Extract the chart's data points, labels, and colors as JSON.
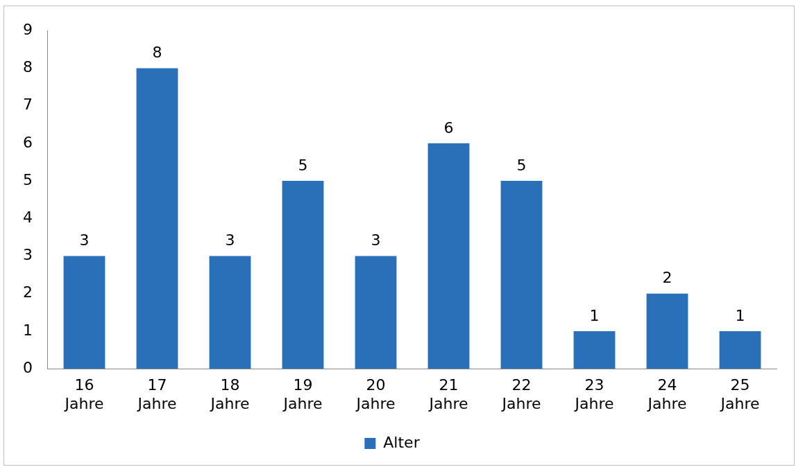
{
  "chart_data": {
    "type": "bar",
    "categories": [
      "16 Jahre",
      "17 Jahre",
      "18 Jahre",
      "19 Jahre",
      "20 Jahre",
      "21 Jahre",
      "22 Jahre",
      "23 Jahre",
      "24 Jahre",
      "25 Jahre"
    ],
    "series": [
      {
        "name": "Alter",
        "color": "#2970b9",
        "values": [
          3,
          8,
          3,
          5,
          3,
          6,
          5,
          1,
          2,
          1
        ]
      }
    ],
    "ylim": [
      0,
      9
    ],
    "yticks": [
      0,
      1,
      2,
      3,
      4,
      5,
      6,
      7,
      8,
      9
    ],
    "grid": false,
    "legend": "bottom",
    "data_labels": true
  }
}
